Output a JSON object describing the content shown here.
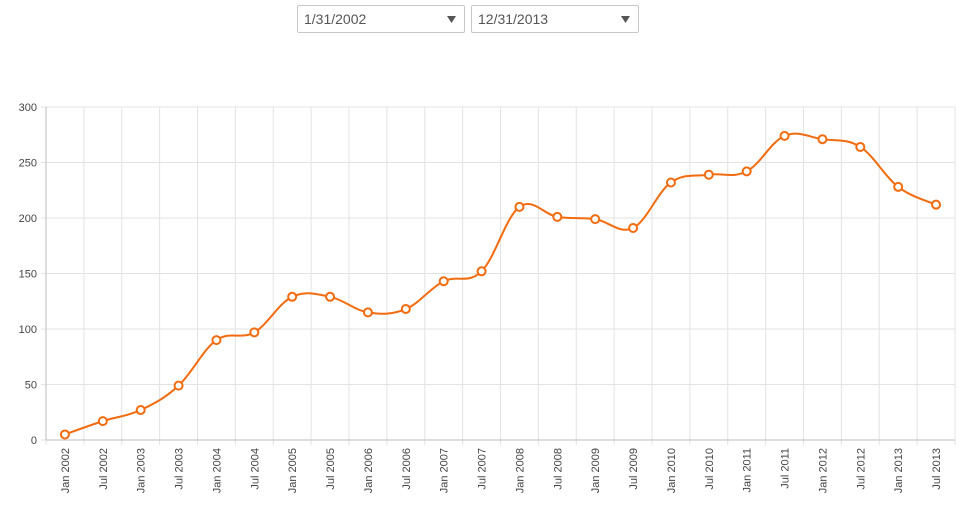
{
  "controls": {
    "start_date": "1/31/2002",
    "end_date": "12/31/2013"
  },
  "chart_data": {
    "type": "line",
    "categories": [
      "Jan 2002",
      "Jul 2002",
      "Jan 2003",
      "Jul 2003",
      "Jan 2004",
      "Jul 2004",
      "Jan 2005",
      "Jul 2005",
      "Jan 2006",
      "Jul 2006",
      "Jan 2007",
      "Jul 2007",
      "Jan 2008",
      "Jul 2008",
      "Jan 2009",
      "Jul 2009",
      "Jan 2010",
      "Jul 2010",
      "Jan 2011",
      "Jul 2011",
      "Jan 2012",
      "Jul 2012",
      "Jan 2013",
      "Jul 2013"
    ],
    "values": [
      5,
      17,
      27,
      49,
      90,
      97,
      129,
      129,
      115,
      118,
      143,
      152,
      210,
      201,
      199,
      191,
      232,
      239,
      242,
      274,
      271,
      264,
      228,
      212
    ],
    "color": "#f26b0f",
    "ylim": [
      0,
      300
    ],
    "yticks": [
      0,
      50,
      100,
      150,
      200,
      250,
      300
    ],
    "grid": true
  }
}
